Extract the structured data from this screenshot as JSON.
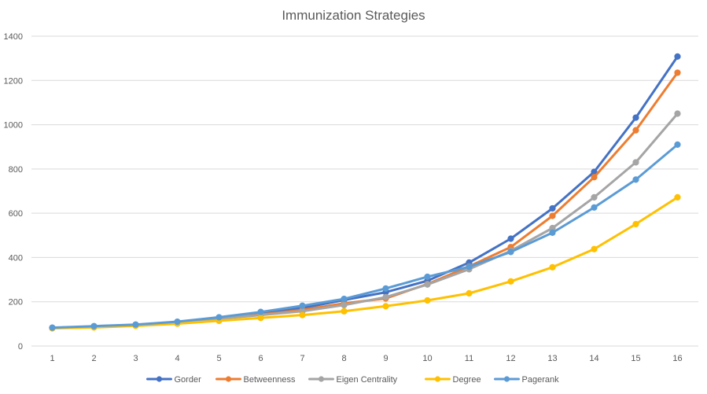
{
  "chart_data": {
    "type": "line",
    "title": "Immunization Strategies",
    "xlabel": "",
    "ylabel": "",
    "categories": [
      "1",
      "2",
      "3",
      "4",
      "5",
      "6",
      "7",
      "8",
      "9",
      "10",
      "11",
      "12",
      "13",
      "14",
      "15",
      "16"
    ],
    "ylim": [
      0,
      1400
    ],
    "yticks": [
      0,
      200,
      400,
      600,
      800,
      1000,
      1200,
      1400
    ],
    "grid": true,
    "legend_position": "bottom",
    "series": [
      {
        "name": "Gorder",
        "color": "#4472c4",
        "values": [
          82,
          88,
          96,
          108,
          126,
          147,
          172,
          208,
          243,
          295,
          377,
          485,
          622,
          787,
          1032,
          1308
        ]
      },
      {
        "name": "Betweenness",
        "color": "#ed7d31",
        "values": [
          82,
          88,
          95,
          106,
          124,
          142,
          163,
          193,
          215,
          280,
          360,
          447,
          588,
          763,
          975,
          1235
        ]
      },
      {
        "name": "Eigen Centrality",
        "color": "#a5a5a5",
        "values": [
          82,
          88,
          95,
          106,
          123,
          140,
          157,
          185,
          221,
          278,
          347,
          430,
          533,
          672,
          830,
          1050
        ]
      },
      {
        "name": "Degree",
        "color": "#ffc000",
        "values": [
          80,
          84,
          91,
          101,
          114,
          127,
          140,
          157,
          180,
          206,
          238,
          292,
          356,
          438,
          551,
          672
        ]
      },
      {
        "name": "Pagerank",
        "color": "#5b9bd5",
        "values": [
          83,
          90,
          97,
          110,
          130,
          154,
          182,
          213,
          260,
          313,
          358,
          425,
          512,
          626,
          752,
          910
        ]
      }
    ]
  }
}
